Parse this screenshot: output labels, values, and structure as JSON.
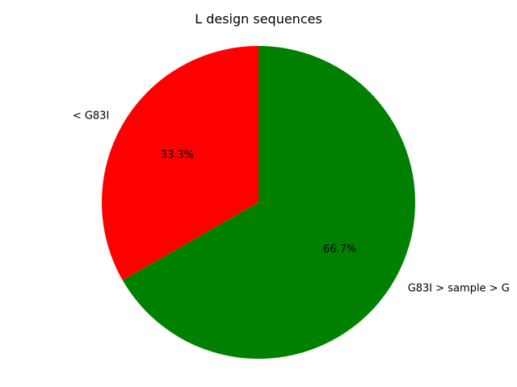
{
  "chart_data": {
    "type": "pie",
    "title": "L design sequences",
    "start_angle_deg": 90,
    "direction": "counterclockwise",
    "slices": [
      {
        "label": "< G83I",
        "value": 33.3,
        "percent_label": "33.3%",
        "color": "#ff0000"
      },
      {
        "label": "G83I > sample > G",
        "value": 66.7,
        "percent_label": "66.7%",
        "color": "#008000"
      }
    ]
  }
}
